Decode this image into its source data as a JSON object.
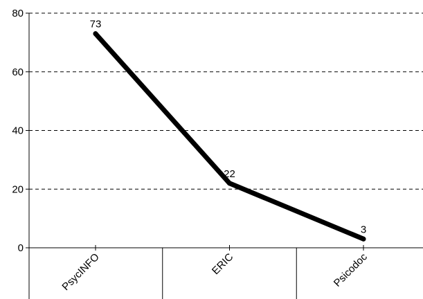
{
  "chart_data": {
    "type": "line",
    "categories": [
      "PsycINFO",
      "ERIC",
      "Psicodoc"
    ],
    "values": [
      73,
      22,
      3
    ],
    "data_labels": [
      "73",
      "22",
      "3"
    ],
    "title": "",
    "xlabel": "",
    "ylabel": "",
    "ylim": [
      0,
      80
    ],
    "yticks": [
      "0",
      "20",
      "40",
      "60",
      "80"
    ],
    "grid": true,
    "grid_style": "dashed",
    "legend": "none",
    "colors": {
      "line": "#000000",
      "grid": "#000000",
      "axis": "#000000"
    }
  }
}
